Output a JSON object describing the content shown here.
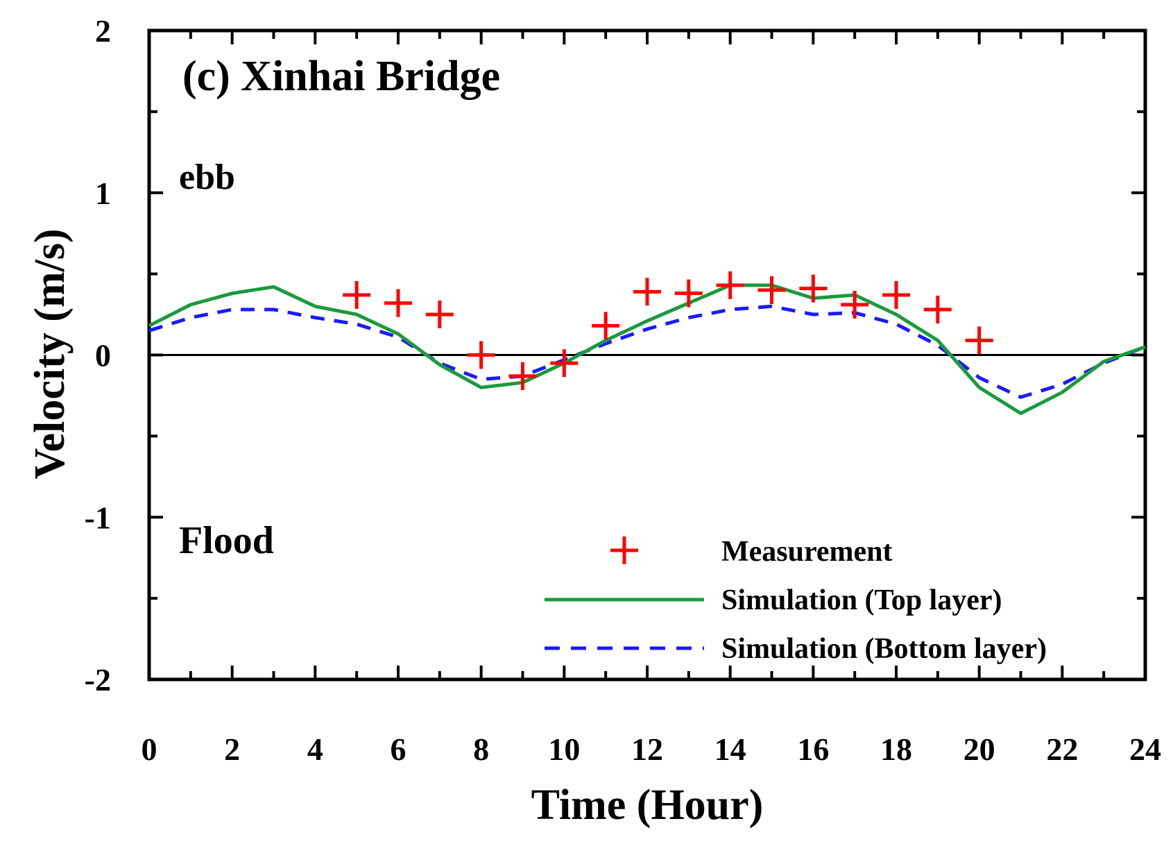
{
  "chart_data": {
    "type": "line",
    "title": "(c) Xinhai Bridge",
    "xlabel": "Time (Hour)",
    "ylabel": "Velocity (m/s)",
    "xlim": [
      0,
      24
    ],
    "ylim": [
      -2,
      2
    ],
    "xticks": [
      "0",
      "2",
      "4",
      "6",
      "8",
      "10",
      "12",
      "14",
      "16",
      "18",
      "20",
      "22",
      "24"
    ],
    "yticks": [
      "2",
      "1",
      "0",
      "-1",
      "-2"
    ],
    "annotations": {
      "ebb": "ebb",
      "flood": "Flood"
    },
    "legend_position": "bottom-right",
    "series": [
      {
        "name": "Measurement",
        "kind": "markers",
        "marker": "plus",
        "color": "#ff0000",
        "x": [
          5,
          6,
          7,
          8,
          9,
          10,
          11,
          12,
          13,
          14,
          15,
          16,
          17,
          18,
          19,
          20
        ],
        "y": [
          0.37,
          0.32,
          0.25,
          0.0,
          -0.13,
          -0.05,
          0.18,
          0.39,
          0.38,
          0.43,
          0.4,
          0.41,
          0.31,
          0.37,
          0.28,
          0.09
        ]
      },
      {
        "name": "Simulation (Top layer)",
        "kind": "line",
        "color": "#1a9a3c",
        "dash": "solid",
        "x": [
          0,
          1,
          2,
          3,
          4,
          5,
          6,
          7,
          8,
          9,
          10,
          11,
          12,
          13,
          14,
          15,
          16,
          17,
          18,
          19,
          20,
          21,
          22,
          23,
          24
        ],
        "y": [
          0.18,
          0.31,
          0.38,
          0.42,
          0.3,
          0.25,
          0.13,
          -0.06,
          -0.2,
          -0.17,
          -0.05,
          0.09,
          0.21,
          0.32,
          0.43,
          0.43,
          0.35,
          0.37,
          0.25,
          0.09,
          -0.2,
          -0.36,
          -0.23,
          -0.04,
          0.05
        ]
      },
      {
        "name": "Simulation (Bottom layer)",
        "kind": "line",
        "color": "#1a1aff",
        "dash": "dashed",
        "x": [
          0,
          1,
          2,
          3,
          4,
          5,
          6,
          7,
          8,
          9,
          10,
          11,
          12,
          13,
          14,
          15,
          16,
          17,
          18,
          19,
          20,
          21,
          22,
          23,
          24
        ],
        "y": [
          0.15,
          0.23,
          0.28,
          0.28,
          0.23,
          0.19,
          0.11,
          -0.05,
          -0.15,
          -0.13,
          -0.03,
          0.07,
          0.16,
          0.23,
          0.28,
          0.3,
          0.25,
          0.26,
          0.19,
          0.06,
          -0.14,
          -0.26,
          -0.18,
          -0.05,
          0.05
        ]
      }
    ]
  }
}
